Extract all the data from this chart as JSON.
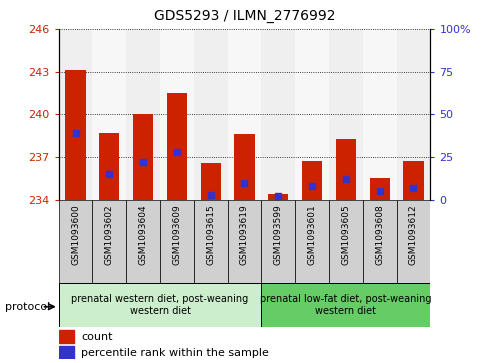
{
  "title": "GDS5293 / ILMN_2776992",
  "samples": [
    "GSM1093600",
    "GSM1093602",
    "GSM1093604",
    "GSM1093609",
    "GSM1093615",
    "GSM1093619",
    "GSM1093599",
    "GSM1093601",
    "GSM1093605",
    "GSM1093608",
    "GSM1093612"
  ],
  "bar_values": [
    243.1,
    238.7,
    240.0,
    241.5,
    236.6,
    238.6,
    234.4,
    236.7,
    238.3,
    235.5,
    236.7
  ],
  "percentile_values": [
    39,
    15,
    22,
    28,
    3,
    10,
    2,
    8,
    12,
    5,
    7
  ],
  "ymin": 234,
  "ymax": 246,
  "yticks": [
    234,
    237,
    240,
    243,
    246
  ],
  "yright_ticks": [
    0,
    25,
    50,
    75,
    100
  ],
  "yright_labels": [
    "0",
    "25",
    "50",
    "75",
    "100%"
  ],
  "bar_color": "#cc2200",
  "dot_color": "#3333cc",
  "group1_label": "prenatal western diet, post-weaning\nwestern diet",
  "group2_label": "prenatal low-fat diet, post-weaning\nwestern diet",
  "group1_count": 6,
  "group2_count": 5,
  "group1_bg": "#cceecc",
  "group2_bg": "#66cc66",
  "protocol_label": "protocol",
  "legend_count_label": "count",
  "legend_percentile_label": "percentile rank within the sample",
  "left_tick_color": "#cc2200",
  "right_tick_color": "#3333cc",
  "bar_width": 0.6,
  "dot_size": 12,
  "col_bg_odd": "#e0e0e0",
  "col_bg_even": "#f0f0f0"
}
